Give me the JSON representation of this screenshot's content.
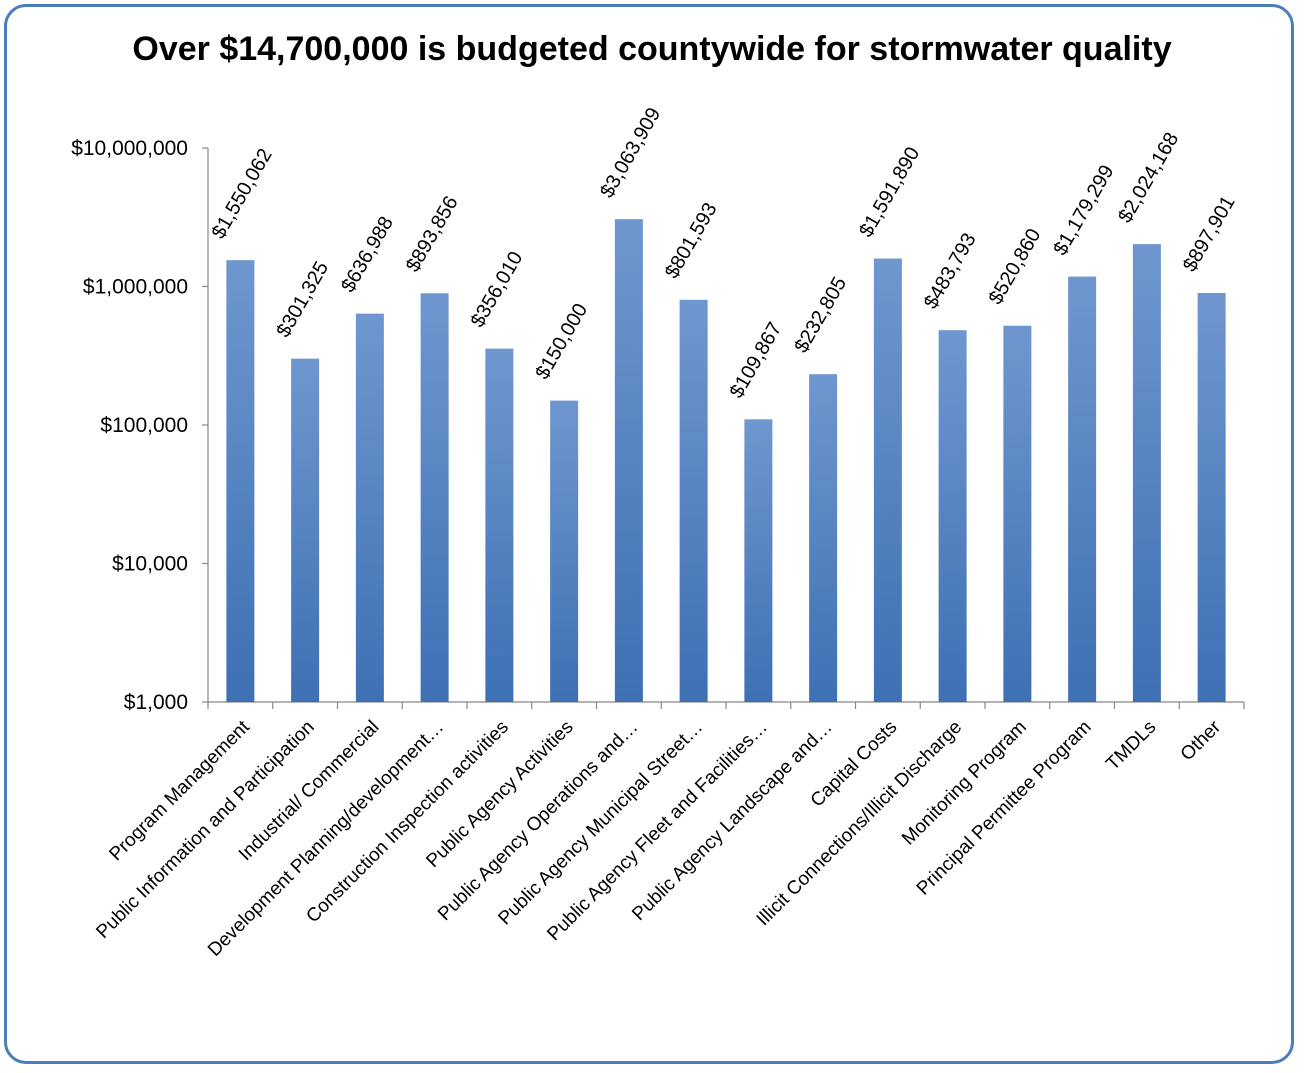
{
  "chart_data": {
    "type": "bar",
    "title": "Over $14,700,000 is budgeted countywide for stormwater quality",
    "yscale": "log",
    "ylim": [
      1000,
      10000000
    ],
    "yticks": [
      {
        "value": 1000,
        "label": "$1,000"
      },
      {
        "value": 10000,
        "label": "$10,000"
      },
      {
        "value": 100000,
        "label": "$100,000"
      },
      {
        "value": 1000000,
        "label": "$1,000,000"
      },
      {
        "value": 10000000,
        "label": "$10,000,000"
      }
    ],
    "grid": false,
    "legend": "none",
    "bar_color": "#4a7ebb",
    "categories": [
      "Program Management",
      "Public Information and Participation",
      "Industrial/ Commercial",
      "Development Planning/development…",
      "Construction Inspection activities",
      "Public Agency Activities",
      "Public Agency Operations and…",
      "Public Agency Municipal Street…",
      "Public Agency Fleet and Facilities…",
      "Public Agency Landscape and…",
      "Capital Costs",
      "Illicit Connections/Illicit Discharge",
      "Monitoring Program",
      "Principal Permittee Program",
      "TMDLs",
      "Other"
    ],
    "values": [
      1550062,
      301325,
      636988,
      893856,
      356010,
      150000,
      3063909,
      801593,
      109867,
      232805,
      1591890,
      483793,
      520860,
      1179299,
      2024168,
      897901
    ],
    "data_labels": [
      "$1,550,062",
      "$301,325",
      "$636,988",
      "$893,856",
      "$356,010",
      "$150,000",
      "$3,063,909",
      "$801,593",
      "$109,867",
      "$232,805",
      "$1,591,890",
      "$483,793",
      "$520,860",
      "$1,179,299",
      "$2,024,168",
      "$897,901"
    ]
  }
}
